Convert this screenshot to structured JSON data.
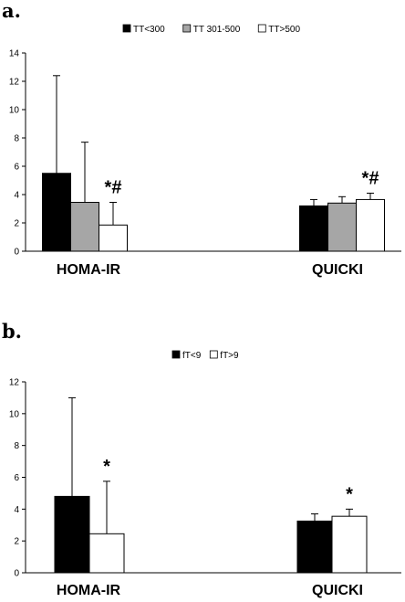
{
  "chart_data": [
    {
      "type": "bar",
      "panel_label": "a.",
      "categories": [
        "HOMA-IR",
        "QUICKI"
      ],
      "series": [
        {
          "name": "TT<300",
          "color": "#000000",
          "values": [
            5.5,
            3.2
          ],
          "error": [
            6.9,
            0.45
          ]
        },
        {
          "name": "TT 301-500",
          "color": "#a6a6a6",
          "values": [
            3.45,
            3.4
          ],
          "error": [
            4.25,
            0.45
          ]
        },
        {
          "name": "TT>500",
          "color": "#ffffff",
          "values": [
            1.85,
            3.65
          ],
          "error": [
            1.6,
            0.45
          ]
        }
      ],
      "annotations": [
        {
          "category": "HOMA-IR",
          "series": "TT>500",
          "text": "*#"
        },
        {
          "category": "QUICKI",
          "series": "TT>500",
          "text": "*#"
        }
      ],
      "ylim": [
        0,
        14
      ],
      "yticks": [
        0,
        2,
        4,
        6,
        8,
        10,
        12,
        14
      ],
      "legend": "top",
      "grid": false
    },
    {
      "type": "bar",
      "panel_label": "b.",
      "categories": [
        "HOMA-IR",
        "QUICKI"
      ],
      "series": [
        {
          "name": "fT<9",
          "color": "#000000",
          "values": [
            4.8,
            3.25
          ],
          "error": [
            6.2,
            0.45
          ]
        },
        {
          "name": "fT>9",
          "color": "#ffffff",
          "values": [
            2.45,
            3.55
          ],
          "error": [
            3.3,
            0.45
          ]
        }
      ],
      "annotations": [
        {
          "category": "HOMA-IR",
          "series": "fT>9",
          "text": "*"
        },
        {
          "category": "QUICKI",
          "series": "fT>9",
          "text": "*"
        }
      ],
      "ylim": [
        0,
        12
      ],
      "yticks": [
        0,
        2,
        4,
        6,
        8,
        10,
        12
      ],
      "legend": "top",
      "grid": false
    }
  ]
}
